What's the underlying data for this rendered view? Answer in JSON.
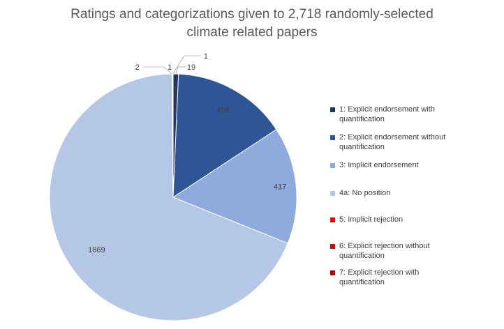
{
  "chart_data": {
    "type": "pie",
    "title_lines": [
      "Ratings and categorizations given to 2,718 randomly-selected",
      "climate related papers"
    ],
    "categories": [
      "1: Explicit endorsement with quantification",
      "2: Explicit endorsement without quantification",
      "3: Implicit endorsement",
      "4a: No position",
      "5: Implicit rejection",
      "6: Explicit rejection without quantification",
      "7: Explicit rejection with quantification"
    ],
    "legend_lines": [
      [
        "1: Explicit endorsement with",
        "quantification"
      ],
      [
        "2: Explicit endorsement without",
        "quantification"
      ],
      [
        "3: Implicit endorsement"
      ],
      [
        "4a: No position"
      ],
      [
        "5: Implicit rejection"
      ],
      [
        "6: Explicit rejection without",
        "quantification"
      ],
      [
        "7: Explicit rejection with",
        "quantification"
      ]
    ],
    "values": [
      19,
      409,
      417,
      1869,
      2,
      1,
      1
    ],
    "data_labels": [
      "19",
      "409",
      "417",
      "1869",
      "2",
      "1",
      "1"
    ],
    "colors": [
      "#1f3864",
      "#2f5597",
      "#8faadc",
      "#b4c7e7",
      "#ff0000",
      "#e00000",
      "#c00000"
    ],
    "legend_position": "right"
  }
}
